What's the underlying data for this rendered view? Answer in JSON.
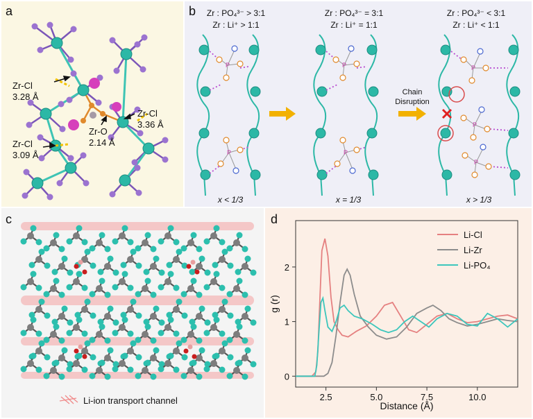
{
  "panel_a": {
    "label": "a",
    "annotations": [
      {
        "line1": "Zr-Cl",
        "line2": "3.28 Å"
      },
      {
        "line1": "Zr-Cl",
        "line2": "3.36 Å"
      },
      {
        "line1": "Zr-Cl",
        "line2": "3.09 Å"
      },
      {
        "line1": "Zr-O",
        "line2": "2.14 Å"
      }
    ]
  },
  "panel_b": {
    "label": "b",
    "columns": [
      {
        "ratio_po4": "Zr : PO₄³⁻ > 3:1",
        "ratio_li": "Zr : Li⁺ > 1:1",
        "x_label": "x < 1/3"
      },
      {
        "ratio_po4": "Zr : PO₄³⁻ = 3:1",
        "ratio_li": "Zr : Li⁺ = 1:1",
        "x_label": "x = 1/3"
      },
      {
        "ratio_po4": "Zr : PO₄³⁻ < 3:1",
        "ratio_li": "Zr : Li⁺ < 1:1",
        "x_label": "x > 1/3"
      }
    ],
    "arrow2_label_line1": "Chain",
    "arrow2_label_line2": "Disruption",
    "atom_p": "P",
    "atom_o": "O"
  },
  "panel_c": {
    "label": "c",
    "legend": "Li-ion transport channel"
  },
  "panel_d": {
    "label": "d",
    "chart_data": {
      "type": "line",
      "xlabel": "Distance (Å)",
      "ylabel": "g (r)",
      "xlim": [
        1.0,
        12.0
      ],
      "ylim": [
        -0.2,
        2.85
      ],
      "xticks": [
        "2.5",
        "5.0",
        "7.5",
        "10.0"
      ],
      "xtick_values": [
        2.5,
        5.0,
        7.5,
        10.0
      ],
      "yticks": [
        "0",
        "1",
        "2"
      ],
      "ytick_values": [
        0,
        1,
        2
      ],
      "legend_position": "top-right",
      "series": [
        {
          "name": "Li-Cl",
          "color": "#e58080",
          "x": [
            1.0,
            1.8,
            2.0,
            2.1,
            2.2,
            2.3,
            2.45,
            2.6,
            2.75,
            2.9,
            3.1,
            3.3,
            3.6,
            4.0,
            4.5,
            5.0,
            5.4,
            5.8,
            6.2,
            6.6,
            7.0,
            7.5,
            8.0,
            8.5,
            9.0,
            9.5,
            10.0,
            10.5,
            11.0,
            11.5,
            12.0
          ],
          "y": [
            0,
            0,
            0.08,
            0.45,
            1.4,
            2.3,
            2.52,
            2.2,
            1.45,
            1.0,
            0.85,
            0.75,
            0.72,
            0.82,
            0.92,
            1.1,
            1.3,
            1.35,
            1.1,
            0.85,
            0.8,
            0.95,
            1.1,
            1.15,
            1.05,
            0.98,
            1.0,
            1.05,
            1.1,
            1.12,
            1.05
          ]
        },
        {
          "name": "Li-Zr",
          "color": "#8c8c8c",
          "x": [
            1.0,
            2.4,
            2.6,
            2.8,
            3.0,
            3.2,
            3.4,
            3.55,
            3.7,
            3.9,
            4.2,
            4.6,
            5.0,
            5.5,
            6.0,
            6.5,
            7.0,
            7.5,
            7.8,
            8.2,
            8.6,
            9.0,
            9.5,
            10.0,
            10.5,
            11.0,
            11.5,
            12.0
          ],
          "y": [
            0,
            0,
            0.05,
            0.25,
            0.75,
            1.35,
            1.85,
            1.96,
            1.85,
            1.5,
            1.1,
            0.9,
            0.75,
            0.68,
            0.72,
            0.9,
            1.15,
            1.25,
            1.3,
            1.2,
            1.05,
            0.98,
            0.92,
            0.95,
            1.0,
            1.05,
            1.02,
            1.0
          ]
        },
        {
          "name": "Li-PO₄",
          "color": "#3cc6bc",
          "x": [
            1.0,
            1.95,
            2.05,
            2.15,
            2.25,
            2.35,
            2.45,
            2.6,
            2.8,
            3.0,
            3.2,
            3.4,
            3.6,
            3.9,
            4.3,
            4.8,
            5.2,
            5.6,
            6.0,
            6.4,
            6.8,
            7.2,
            7.6,
            8.0,
            8.5,
            9.0,
            9.5,
            10.0,
            10.5,
            11.0,
            11.5,
            12.0
          ],
          "y": [
            0,
            0,
            0.2,
            0.8,
            1.35,
            1.43,
            1.2,
            0.9,
            0.82,
            1.0,
            1.25,
            1.3,
            1.2,
            1.1,
            1.05,
            0.95,
            0.85,
            0.8,
            0.85,
            1.0,
            1.1,
            1.0,
            0.9,
            1.05,
            1.15,
            1.1,
            0.95,
            0.92,
            1.15,
            1.05,
            0.9,
            1.05
          ]
        }
      ]
    }
  }
}
